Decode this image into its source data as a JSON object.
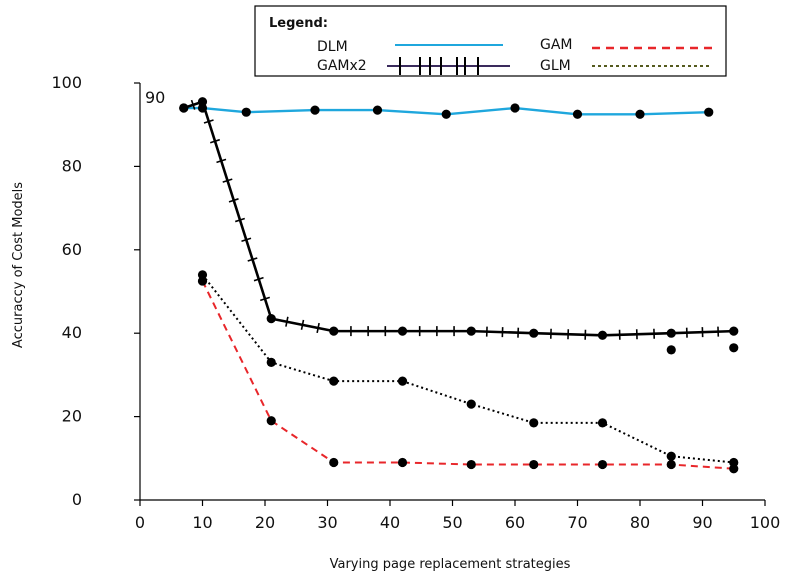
{
  "chart_data": {
    "type": "line",
    "xlabel": "Varying page replacement strategies",
    "ylabel": "Accuraccy of Cost Models",
    "xlim": [
      0,
      100
    ],
    "ylim": [
      0,
      100
    ],
    "x_ticks": [
      "0",
      "10",
      "20",
      "30",
      "40",
      "50",
      "60",
      "70",
      "80",
      "90",
      "100"
    ],
    "y_ticks": [
      "0",
      "20",
      "40",
      "60",
      "80",
      "100"
    ],
    "y_top_annotation": "90",
    "legend": {
      "title": "Legend:",
      "placement": "top",
      "entries": [
        "DLM",
        "GAMx2",
        "GAM",
        "GLM"
      ]
    },
    "series": [
      {
        "name": "DLM",
        "color": "#1fa7dd",
        "style": "solid",
        "x": [
          7,
          10,
          17,
          28,
          38,
          49,
          60,
          70,
          80,
          91
        ],
        "y": [
          94,
          94,
          93,
          93.5,
          93.5,
          92.5,
          94,
          92.5,
          92.5,
          93
        ]
      },
      {
        "name": "GAMx2",
        "color": "#000000",
        "style": "solid-with-ticks",
        "x": [
          7,
          10,
          21,
          31,
          42,
          53,
          63,
          74,
          85,
          95
        ],
        "y": [
          94,
          95.5,
          43.5,
          40.5,
          40.5,
          40.5,
          40,
          39.5,
          40,
          40.5
        ]
      },
      {
        "name": "GAM",
        "color": "#e8262a",
        "style": "dashed",
        "x": [
          10,
          21,
          31,
          42,
          53,
          63,
          74,
          85,
          95
        ],
        "y": [
          52.5,
          19,
          9,
          9,
          8.5,
          8.5,
          8.5,
          8.5,
          7.5
        ]
      },
      {
        "name": "GLM",
        "color": "#000000",
        "style": "dotted",
        "x": [
          10,
          21,
          31,
          42,
          53,
          63,
          74,
          85,
          95
        ],
        "y": [
          54,
          33,
          28.5,
          28.5,
          23,
          18.5,
          18.5,
          10.5,
          9
        ]
      }
    ],
    "extra_points": [
      {
        "x": 85,
        "y": 36
      },
      {
        "x": 95,
        "y": 36.5
      }
    ]
  }
}
